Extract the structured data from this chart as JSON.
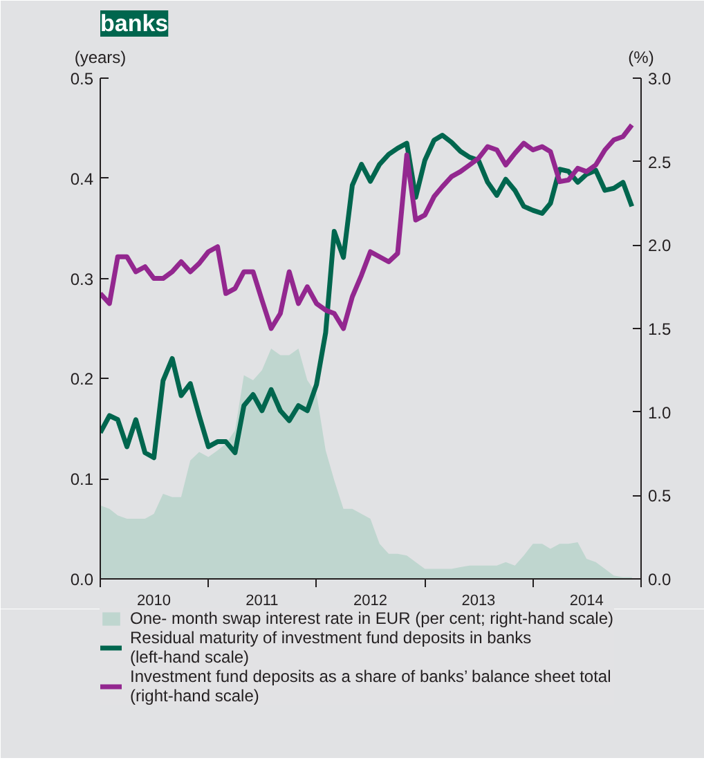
{
  "chart_data": {
    "type": "line",
    "title": "banks",
    "ylabel": "(years)",
    "y2label": "(%)",
    "x": [
      "2010-01",
      "2010-02",
      "2010-03",
      "2010-04",
      "2010-05",
      "2010-06",
      "2010-07",
      "2010-08",
      "2010-09",
      "2010-10",
      "2010-11",
      "2010-12",
      "2011-01",
      "2011-02",
      "2011-03",
      "2011-04",
      "2011-05",
      "2011-06",
      "2011-07",
      "2011-08",
      "2011-09",
      "2011-10",
      "2011-11",
      "2011-12",
      "2012-01",
      "2012-02",
      "2012-03",
      "2012-04",
      "2012-05",
      "2012-06",
      "2012-07",
      "2012-08",
      "2012-09",
      "2012-10",
      "2012-11",
      "2012-12",
      "2013-01",
      "2013-02",
      "2013-03",
      "2013-04",
      "2013-05",
      "2013-06",
      "2013-07",
      "2013-08",
      "2013-09",
      "2013-10",
      "2013-11",
      "2013-12",
      "2014-01",
      "2014-02",
      "2014-03",
      "2014-04",
      "2014-05",
      "2014-06",
      "2014-07",
      "2014-08",
      "2014-09",
      "2014-10",
      "2014-11",
      "2014-12"
    ],
    "xlim": [
      "2010-01-01",
      "2015-01-01"
    ],
    "xticks": [
      {
        "value": "2010-01-01",
        "label": null
      },
      {
        "value": "2010-07-01",
        "label": "2010"
      },
      {
        "value": "2011-01-01",
        "label": null
      },
      {
        "value": "2011-07-01",
        "label": "2011"
      },
      {
        "value": "2012-01-01",
        "label": null
      },
      {
        "value": "2012-07-01",
        "label": "2012"
      },
      {
        "value": "2013-01-01",
        "label": null
      },
      {
        "value": "2013-07-01",
        "label": "2013"
      },
      {
        "value": "2014-01-01",
        "label": null
      },
      {
        "value": "2014-07-01",
        "label": "2014"
      },
      {
        "value": "2015-01-01",
        "label": null
      }
    ],
    "ylim": [
      0,
      0.5
    ],
    "yticks": [
      {
        "value": 0,
        "label": "0.0"
      },
      0.1,
      0.2,
      0.3,
      0.4,
      0.5
    ],
    "y2lim": [
      0,
      3
    ],
    "y2ticks": [
      {
        "value": 0,
        "label": "0.0"
      },
      {
        "value": 0.5,
        "label": "0.5"
      },
      {
        "value": 1,
        "label": "1.0"
      },
      {
        "value": 1.5,
        "label": "1.5"
      },
      {
        "value": 2,
        "label": "2.0"
      },
      {
        "value": 2.5,
        "label": "2.5"
      },
      {
        "value": 3,
        "label": "3.0"
      }
    ],
    "grid": false,
    "legend": "bottom",
    "line_style": "solid",
    "marker": "none",
    "series": [
      {
        "type": "area",
        "axis": "y2",
        "name": "One- month swap interest rate in EUR (per cent; right-hand scale)",
        "color": "#bfd6cf",
        "values": [
          0.44,
          0.42,
          0.38,
          0.36,
          0.36,
          0.36,
          0.39,
          0.51,
          0.49,
          0.49,
          0.71,
          0.76,
          0.73,
          0.77,
          0.81,
          0.89,
          1.22,
          1.19,
          1.25,
          1.38,
          1.34,
          1.34,
          1.38,
          1.19,
          1.11,
          0.77,
          0.59,
          0.42,
          0.42,
          0.39,
          0.36,
          0.21,
          0.15,
          0.15,
          0.14,
          0.1,
          0.06,
          0.06,
          0.06,
          0.06,
          0.07,
          0.08,
          0.08,
          0.08,
          0.08,
          0.1,
          0.08,
          0.14,
          0.21,
          0.21,
          0.18,
          0.21,
          0.21,
          0.22,
          0.12,
          0.1,
          0.06,
          0.02,
          0.01,
          0.01
        ]
      },
      {
        "name": "Residual maturity of investment fund deposits in banks (left-hand scale)",
        "color": "#00664e",
        "values": [
          0.146,
          0.163,
          0.159,
          0.132,
          0.159,
          0.126,
          0.121,
          0.198,
          0.22,
          0.183,
          0.195,
          0.163,
          0.132,
          0.137,
          0.137,
          0.126,
          0.173,
          0.184,
          0.168,
          0.189,
          0.168,
          0.158,
          0.173,
          0.168,
          0.194,
          0.246,
          0.347,
          0.321,
          0.393,
          0.414,
          0.397,
          0.414,
          0.424,
          0.43,
          0.435,
          0.381,
          0.418,
          0.438,
          0.443,
          0.436,
          0.427,
          0.421,
          0.418,
          0.396,
          0.383,
          0.399,
          0.388,
          0.372,
          0.368,
          0.365,
          0.375,
          0.409,
          0.407,
          0.396,
          0.404,
          0.408,
          0.388,
          0.39,
          0.396,
          0.372
        ]
      },
      {
        "axis": "y2",
        "name": "Investment fund deposits as a share of banks’ balance sheet total (right-hand scale)",
        "color": "#93278f",
        "values": [
          1.71,
          1.65,
          1.93,
          1.93,
          1.84,
          1.87,
          1.8,
          1.8,
          1.84,
          1.9,
          1.84,
          1.89,
          1.96,
          1.99,
          1.71,
          1.74,
          1.84,
          1.84,
          1.67,
          1.5,
          1.59,
          1.84,
          1.65,
          1.75,
          1.65,
          1.61,
          1.59,
          1.5,
          1.69,
          1.82,
          1.96,
          1.93,
          1.9,
          1.95,
          2.54,
          2.15,
          2.18,
          2.29,
          2.35,
          2.41,
          2.44,
          2.48,
          2.52,
          2.59,
          2.57,
          2.48,
          2.55,
          2.61,
          2.57,
          2.59,
          2.56,
          2.38,
          2.39,
          2.46,
          2.44,
          2.48,
          2.57,
          2.63,
          2.65,
          2.72
        ]
      }
    ]
  }
}
